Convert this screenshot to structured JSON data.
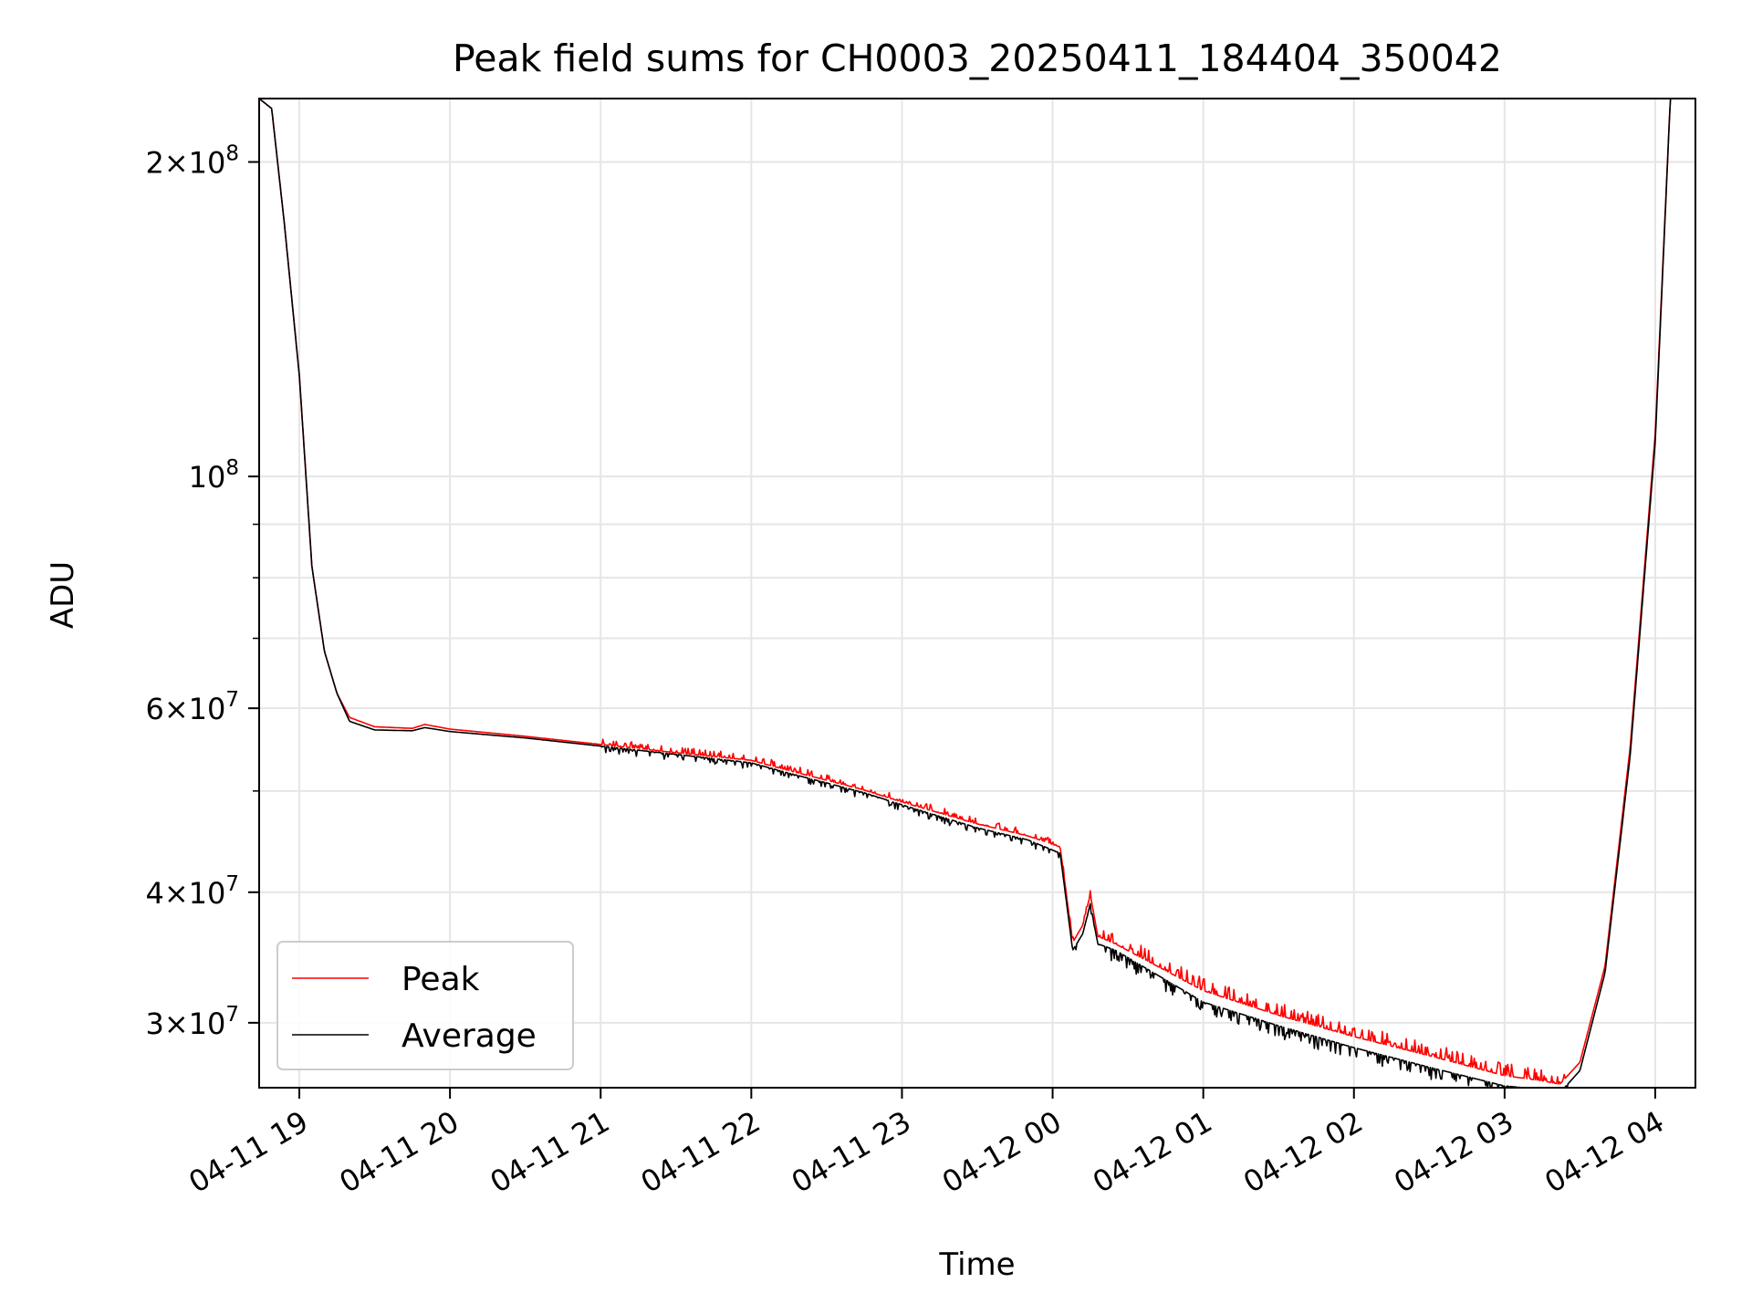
{
  "chart_data": {
    "type": "line",
    "title": "Peak field sums for CH0003_20250411_184404_350042",
    "xlabel": "Time",
    "ylabel": "ADU",
    "yscale": "log",
    "xlim": [
      "2025-04-11T18:44",
      "2025-04-12T04:16"
    ],
    "ylim": [
      26000000,
      230000000
    ],
    "x_ticks": [
      "04-11 19",
      "04-11 20",
      "04-11 21",
      "04-11 22",
      "04-11 23",
      "04-12 00",
      "04-12 01",
      "04-12 02",
      "04-12 03",
      "04-12 04"
    ],
    "x_tick_times": [
      "2025-04-11T19:00",
      "2025-04-11T20:00",
      "2025-04-11T21:00",
      "2025-04-11T22:00",
      "2025-04-11T23:00",
      "2025-04-12T00:00",
      "2025-04-12T01:00",
      "2025-04-12T02:00",
      "2025-04-12T03:00",
      "2025-04-12T04:00"
    ],
    "y_major_ticks": [
      {
        "value": 30000000,
        "mantissa": "3",
        "exponent": "7"
      },
      {
        "value": 40000000,
        "mantissa": "4",
        "exponent": "7"
      },
      {
        "value": 60000000,
        "mantissa": "6",
        "exponent": "7"
      },
      {
        "value": 100000000,
        "mantissa": "",
        "exponent": "8"
      },
      {
        "value": 200000000,
        "mantissa": "2",
        "exponent": "8"
      }
    ],
    "y_minor_ticks": [
      50000000,
      70000000,
      80000000,
      90000000
    ],
    "grid": true,
    "legend_position": "lower-left",
    "series": [
      {
        "name": "Peak",
        "color": "#ff0000",
        "noise": "spiky",
        "x": [
          "2025-04-11T18:44",
          "2025-04-11T18:49",
          "2025-04-11T18:54",
          "2025-04-11T19:00",
          "2025-04-11T19:05",
          "2025-04-11T19:10",
          "2025-04-11T19:15",
          "2025-04-11T19:20",
          "2025-04-11T19:30",
          "2025-04-11T19:45",
          "2025-04-11T19:50",
          "2025-04-11T20:00",
          "2025-04-11T20:30",
          "2025-04-11T21:00",
          "2025-04-11T21:30",
          "2025-04-11T22:00",
          "2025-04-11T22:15",
          "2025-04-11T22:30",
          "2025-04-11T22:45",
          "2025-04-11T23:00",
          "2025-04-11T23:30",
          "2025-04-11T23:50",
          "2025-04-12T00:03",
          "2025-04-12T00:08",
          "2025-04-12T00:12",
          "2025-04-12T00:15",
          "2025-04-12T00:18",
          "2025-04-12T00:25",
          "2025-04-12T01:00",
          "2025-04-12T01:30",
          "2025-04-12T02:00",
          "2025-04-12T02:30",
          "2025-04-12T03:00",
          "2025-04-12T03:15",
          "2025-04-12T03:22",
          "2025-04-12T03:30",
          "2025-04-12T03:40",
          "2025-04-12T03:50",
          "2025-04-12T04:00",
          "2025-04-12T04:06",
          "2025-04-12T04:16"
        ],
        "y": [
          230000000,
          225000000,
          175000000,
          125000000,
          82000000,
          68000000,
          62000000,
          58800000,
          57600000,
          57400000,
          57900000,
          57300000,
          56400000,
          55400000,
          54400000,
          53500000,
          52300000,
          51200000,
          50100000,
          48800000,
          46500000,
          45300000,
          44200000,
          35800000,
          37200000,
          39800000,
          36300000,
          35700000,
          32200000,
          30500000,
          29100000,
          27900000,
          26700000,
          26400000,
          26200000,
          27500000,
          34000000,
          55000000,
          110000000,
          230000000,
          230000000
        ]
      },
      {
        "name": "Average",
        "color": "#000000",
        "noise": "dips",
        "x": [
          "2025-04-11T18:44",
          "2025-04-11T18:49",
          "2025-04-11T18:54",
          "2025-04-11T19:00",
          "2025-04-11T19:05",
          "2025-04-11T19:10",
          "2025-04-11T19:15",
          "2025-04-11T19:20",
          "2025-04-11T19:30",
          "2025-04-11T19:45",
          "2025-04-11T19:50",
          "2025-04-11T20:00",
          "2025-04-11T20:30",
          "2025-04-11T21:00",
          "2025-04-11T21:30",
          "2025-04-11T22:00",
          "2025-04-11T22:15",
          "2025-04-11T22:30",
          "2025-04-11T22:45",
          "2025-04-11T23:00",
          "2025-04-11T23:30",
          "2025-04-11T23:50",
          "2025-04-12T00:03",
          "2025-04-12T00:08",
          "2025-04-12T00:12",
          "2025-04-12T00:15",
          "2025-04-12T00:18",
          "2025-04-12T00:25",
          "2025-04-12T01:00",
          "2025-04-12T01:30",
          "2025-04-12T02:00",
          "2025-04-12T02:30",
          "2025-04-12T03:00",
          "2025-04-12T03:15",
          "2025-04-12T03:22",
          "2025-04-12T03:30",
          "2025-04-12T03:40",
          "2025-04-12T03:50",
          "2025-04-12T04:00",
          "2025-04-12T04:06",
          "2025-04-12T04:16"
        ],
        "y": [
          230000000,
          225000000,
          175000000,
          125000000,
          82000000,
          68000000,
          62000000,
          58300000,
          57200000,
          57100000,
          57500000,
          57000000,
          56200000,
          55200000,
          54200000,
          53200000,
          52000000,
          50900000,
          49800000,
          48500000,
          46100000,
          44900000,
          43600000,
          35200000,
          36500000,
          39000000,
          35700000,
          35200000,
          31400000,
          29800000,
          28400000,
          27200000,
          26100000,
          25900000,
          25700000,
          27000000,
          33500000,
          54000000,
          108000000,
          230000000,
          230000000
        ]
      }
    ]
  }
}
